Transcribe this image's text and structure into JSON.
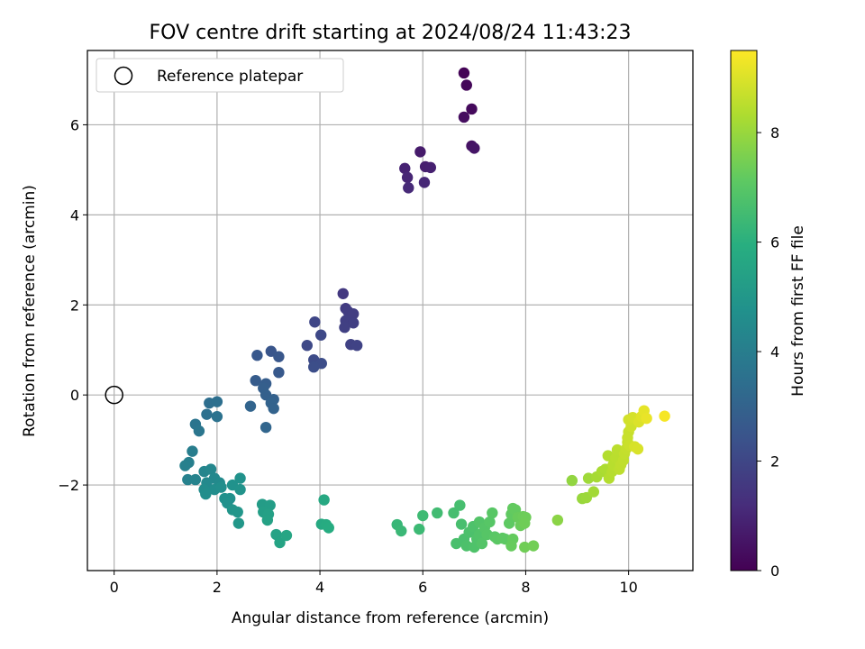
{
  "chart_data": {
    "type": "scatter",
    "title": "FOV centre drift starting at 2024/08/24 11:43:23",
    "xlabel": "Angular distance from reference (arcmin)",
    "ylabel": "Rotation from reference (arcmin)",
    "xlim": [
      -0.52,
      11.25
    ],
    "ylim": [
      -3.9,
      7.65
    ],
    "xticks": [
      0,
      2,
      4,
      6,
      8,
      10
    ],
    "yticks": [
      -2,
      0,
      2,
      4,
      6
    ],
    "xtick_labels": [
      "0",
      "2",
      "4",
      "6",
      "8",
      "10"
    ],
    "ytick_labels": [
      "−2",
      "0",
      "2",
      "4",
      "6"
    ],
    "grid": true,
    "colormap": "viridis",
    "colorbar": {
      "label": "Hours from first FF file",
      "range": [
        0,
        9.5
      ],
      "ticks": [
        0,
        2,
        4,
        6,
        8
      ],
      "tick_labels": [
        "0",
        "2",
        "4",
        "6",
        "8"
      ]
    },
    "legend": {
      "position": "top-left",
      "entries": [
        "Reference platepar"
      ]
    },
    "reference_point": {
      "x": 0,
      "y": 0,
      "label": "Reference platepar"
    },
    "series": [
      {
        "points": [
          {
            "x": 6.8,
            "y": 7.15,
            "h": 0.05
          },
          {
            "x": 6.85,
            "y": 6.88,
            "h": 0.15
          },
          {
            "x": 6.95,
            "y": 6.35,
            "h": 0.25
          },
          {
            "x": 6.8,
            "y": 6.17,
            "h": 0.35
          },
          {
            "x": 6.95,
            "y": 5.53,
            "h": 0.45
          },
          {
            "x": 7.0,
            "y": 5.48,
            "h": 0.55
          },
          {
            "x": 5.95,
            "y": 5.4,
            "h": 0.7
          },
          {
            "x": 6.05,
            "y": 5.07,
            "h": 0.8
          },
          {
            "x": 6.15,
            "y": 5.05,
            "h": 0.85
          },
          {
            "x": 5.65,
            "y": 5.03,
            "h": 0.9
          },
          {
            "x": 5.7,
            "y": 4.83,
            "h": 1.0
          },
          {
            "x": 6.03,
            "y": 4.72,
            "h": 1.05
          },
          {
            "x": 5.72,
            "y": 4.6,
            "h": 1.1
          },
          {
            "x": 4.45,
            "y": 2.25,
            "h": 1.55
          },
          {
            "x": 4.5,
            "y": 1.92,
            "h": 1.65
          },
          {
            "x": 4.55,
            "y": 1.85,
            "h": 1.7
          },
          {
            "x": 4.65,
            "y": 1.8,
            "h": 1.72
          },
          {
            "x": 4.5,
            "y": 1.65,
            "h": 1.75
          },
          {
            "x": 4.65,
            "y": 1.6,
            "h": 1.78
          },
          {
            "x": 4.48,
            "y": 1.5,
            "h": 1.8
          },
          {
            "x": 4.6,
            "y": 1.12,
            "h": 1.85
          },
          {
            "x": 4.72,
            "y": 1.1,
            "h": 1.9
          },
          {
            "x": 3.9,
            "y": 1.62,
            "h": 2.0
          },
          {
            "x": 4.02,
            "y": 1.33,
            "h": 2.05
          },
          {
            "x": 3.75,
            "y": 1.1,
            "h": 2.1
          },
          {
            "x": 3.88,
            "y": 0.78,
            "h": 2.15
          },
          {
            "x": 4.03,
            "y": 0.7,
            "h": 2.2
          },
          {
            "x": 3.88,
            "y": 0.62,
            "h": 2.25
          },
          {
            "x": 3.05,
            "y": 0.97,
            "h": 2.5
          },
          {
            "x": 3.2,
            "y": 0.85,
            "h": 2.55
          },
          {
            "x": 2.78,
            "y": 0.88,
            "h": 2.6
          },
          {
            "x": 3.2,
            "y": 0.5,
            "h": 2.65
          },
          {
            "x": 2.75,
            "y": 0.32,
            "h": 2.75
          },
          {
            "x": 2.95,
            "y": 0.25,
            "h": 2.8
          },
          {
            "x": 2.9,
            "y": 0.15,
            "h": 2.85
          },
          {
            "x": 2.95,
            "y": 0.0,
            "h": 2.9
          },
          {
            "x": 3.1,
            "y": -0.1,
            "h": 2.95
          },
          {
            "x": 3.05,
            "y": -0.18,
            "h": 3.0
          },
          {
            "x": 3.1,
            "y": -0.3,
            "h": 3.02
          },
          {
            "x": 2.65,
            "y": -0.25,
            "h": 3.05
          },
          {
            "x": 2.95,
            "y": -0.72,
            "h": 3.1
          },
          {
            "x": 1.85,
            "y": -0.18,
            "h": 3.4
          },
          {
            "x": 2.0,
            "y": -0.15,
            "h": 3.45
          },
          {
            "x": 1.8,
            "y": -0.43,
            "h": 3.5
          },
          {
            "x": 2.0,
            "y": -0.48,
            "h": 3.55
          },
          {
            "x": 1.58,
            "y": -0.65,
            "h": 3.65
          },
          {
            "x": 1.65,
            "y": -0.8,
            "h": 3.7
          },
          {
            "x": 1.52,
            "y": -1.25,
            "h": 4.0
          },
          {
            "x": 1.45,
            "y": -1.5,
            "h": 4.05
          },
          {
            "x": 1.38,
            "y": -1.57,
            "h": 4.1
          },
          {
            "x": 1.43,
            "y": -1.88,
            "h": 4.15
          },
          {
            "x": 1.58,
            "y": -1.88,
            "h": 4.2
          },
          {
            "x": 1.75,
            "y": -1.7,
            "h": 4.3
          },
          {
            "x": 1.88,
            "y": -1.65,
            "h": 4.35
          },
          {
            "x": 1.95,
            "y": -1.85,
            "h": 4.4
          },
          {
            "x": 1.8,
            "y": -1.95,
            "h": 4.45
          },
          {
            "x": 2.05,
            "y": -1.95,
            "h": 4.5
          },
          {
            "x": 1.75,
            "y": -2.1,
            "h": 4.55
          },
          {
            "x": 1.95,
            "y": -2.1,
            "h": 4.6
          },
          {
            "x": 2.08,
            "y": -2.05,
            "h": 4.62
          },
          {
            "x": 1.78,
            "y": -2.2,
            "h": 4.65
          },
          {
            "x": 2.15,
            "y": -2.3,
            "h": 4.7
          },
          {
            "x": 2.25,
            "y": -2.3,
            "h": 4.72
          },
          {
            "x": 2.2,
            "y": -2.4,
            "h": 4.75
          },
          {
            "x": 2.3,
            "y": -2.0,
            "h": 4.78
          },
          {
            "x": 2.45,
            "y": -1.85,
            "h": 4.8
          },
          {
            "x": 2.45,
            "y": -2.1,
            "h": 4.85
          },
          {
            "x": 2.3,
            "y": -2.55,
            "h": 4.9
          },
          {
            "x": 2.4,
            "y": -2.6,
            "h": 4.95
          },
          {
            "x": 2.42,
            "y": -2.85,
            "h": 5.0
          },
          {
            "x": 2.88,
            "y": -2.43,
            "h": 5.2
          },
          {
            "x": 3.03,
            "y": -2.45,
            "h": 5.25
          },
          {
            "x": 2.9,
            "y": -2.6,
            "h": 5.3
          },
          {
            "x": 3.0,
            "y": -2.65,
            "h": 5.35
          },
          {
            "x": 2.98,
            "y": -2.78,
            "h": 5.4
          },
          {
            "x": 3.15,
            "y": -3.1,
            "h": 5.45
          },
          {
            "x": 3.22,
            "y": -3.28,
            "h": 5.5
          },
          {
            "x": 3.35,
            "y": -3.12,
            "h": 5.55
          },
          {
            "x": 4.08,
            "y": -2.33,
            "h": 5.7
          },
          {
            "x": 4.03,
            "y": -2.87,
            "h": 5.75
          },
          {
            "x": 4.12,
            "y": -2.88,
            "h": 5.8
          },
          {
            "x": 4.17,
            "y": -2.95,
            "h": 5.85
          },
          {
            "x": 5.5,
            "y": -2.88,
            "h": 6.3
          },
          {
            "x": 5.58,
            "y": -3.02,
            "h": 6.35
          },
          {
            "x": 5.93,
            "y": -2.98,
            "h": 6.4
          },
          {
            "x": 6.0,
            "y": -2.68,
            "h": 6.45
          },
          {
            "x": 6.28,
            "y": -2.62,
            "h": 6.5
          },
          {
            "x": 6.6,
            "y": -2.62,
            "h": 6.6
          },
          {
            "x": 6.72,
            "y": -2.45,
            "h": 6.62
          },
          {
            "x": 6.75,
            "y": -2.87,
            "h": 6.65
          },
          {
            "x": 6.65,
            "y": -3.3,
            "h": 6.68
          },
          {
            "x": 6.8,
            "y": -3.2,
            "h": 6.7
          },
          {
            "x": 6.9,
            "y": -3.05,
            "h": 6.72
          },
          {
            "x": 6.85,
            "y": -3.35,
            "h": 6.75
          },
          {
            "x": 6.98,
            "y": -2.92,
            "h": 6.78
          },
          {
            "x": 7.0,
            "y": -3.38,
            "h": 6.8
          },
          {
            "x": 7.05,
            "y": -3.2,
            "h": 6.82
          },
          {
            "x": 7.1,
            "y": -3.1,
            "h": 6.85
          },
          {
            "x": 7.1,
            "y": -2.82,
            "h": 6.88
          },
          {
            "x": 7.15,
            "y": -3.3,
            "h": 6.9
          },
          {
            "x": 7.2,
            "y": -2.95,
            "h": 6.92
          },
          {
            "x": 7.25,
            "y": -3.1,
            "h": 6.95
          },
          {
            "x": 7.3,
            "y": -2.82,
            "h": 6.98
          },
          {
            "x": 7.35,
            "y": -2.62,
            "h": 7.0
          },
          {
            "x": 7.4,
            "y": -3.15,
            "h": 7.02
          },
          {
            "x": 7.45,
            "y": -3.2,
            "h": 7.05
          },
          {
            "x": 7.55,
            "y": -3.18,
            "h": 7.08
          },
          {
            "x": 7.6,
            "y": -3.2,
            "h": 7.1
          },
          {
            "x": 7.68,
            "y": -2.85,
            "h": 7.12
          },
          {
            "x": 7.72,
            "y": -2.65,
            "h": 7.15
          },
          {
            "x": 7.75,
            "y": -2.52,
            "h": 7.18
          },
          {
            "x": 7.8,
            "y": -2.55,
            "h": 7.2
          },
          {
            "x": 7.75,
            "y": -3.2,
            "h": 7.22
          },
          {
            "x": 7.72,
            "y": -3.35,
            "h": 7.25
          },
          {
            "x": 7.85,
            "y": -2.72,
            "h": 7.28
          },
          {
            "x": 7.9,
            "y": -2.9,
            "h": 7.3
          },
          {
            "x": 7.95,
            "y": -2.7,
            "h": 7.32
          },
          {
            "x": 8.0,
            "y": -2.72,
            "h": 7.35
          },
          {
            "x": 7.98,
            "y": -2.85,
            "h": 7.38
          },
          {
            "x": 7.98,
            "y": -3.38,
            "h": 7.4
          },
          {
            "x": 8.15,
            "y": -3.35,
            "h": 7.42
          },
          {
            "x": 8.62,
            "y": -2.78,
            "h": 7.8
          },
          {
            "x": 8.9,
            "y": -1.9,
            "h": 7.9
          },
          {
            "x": 9.1,
            "y": -2.3,
            "h": 8.0
          },
          {
            "x": 9.18,
            "y": -2.28,
            "h": 8.05
          },
          {
            "x": 9.22,
            "y": -1.85,
            "h": 8.1
          },
          {
            "x": 9.32,
            "y": -2.15,
            "h": 8.15
          },
          {
            "x": 9.38,
            "y": -1.82,
            "h": 8.2
          },
          {
            "x": 9.48,
            "y": -1.7,
            "h": 8.25
          },
          {
            "x": 9.55,
            "y": -1.65,
            "h": 8.3
          },
          {
            "x": 9.6,
            "y": -1.35,
            "h": 8.4
          },
          {
            "x": 9.62,
            "y": -1.85,
            "h": 8.42
          },
          {
            "x": 9.68,
            "y": -1.7,
            "h": 8.45
          },
          {
            "x": 9.7,
            "y": -1.55,
            "h": 8.48
          },
          {
            "x": 9.75,
            "y": -1.4,
            "h": 8.5
          },
          {
            "x": 9.78,
            "y": -1.22,
            "h": 8.52
          },
          {
            "x": 9.82,
            "y": -1.65,
            "h": 8.55
          },
          {
            "x": 9.85,
            "y": -1.55,
            "h": 8.58
          },
          {
            "x": 9.9,
            "y": -1.45,
            "h": 8.6
          },
          {
            "x": 9.92,
            "y": -1.3,
            "h": 8.62
          },
          {
            "x": 9.95,
            "y": -1.2,
            "h": 8.65
          },
          {
            "x": 9.98,
            "y": -1.05,
            "h": 8.68
          },
          {
            "x": 10.0,
            "y": -0.82,
            "h": 8.7
          },
          {
            "x": 9.98,
            "y": -0.95,
            "h": 8.72
          },
          {
            "x": 10.02,
            "y": -1.12,
            "h": 8.75
          },
          {
            "x": 10.05,
            "y": -0.7,
            "h": 8.8
          },
          {
            "x": 10.0,
            "y": -0.55,
            "h": 8.85
          },
          {
            "x": 10.08,
            "y": -0.5,
            "h": 8.9
          },
          {
            "x": 10.12,
            "y": -1.15,
            "h": 8.92
          },
          {
            "x": 10.18,
            "y": -1.2,
            "h": 8.95
          },
          {
            "x": 10.2,
            "y": -0.6,
            "h": 9.0
          },
          {
            "x": 10.25,
            "y": -0.48,
            "h": 9.05
          },
          {
            "x": 10.3,
            "y": -0.35,
            "h": 9.15
          },
          {
            "x": 10.35,
            "y": -0.52,
            "h": 9.2
          },
          {
            "x": 10.7,
            "y": -0.47,
            "h": 9.4
          }
        ]
      }
    ]
  }
}
